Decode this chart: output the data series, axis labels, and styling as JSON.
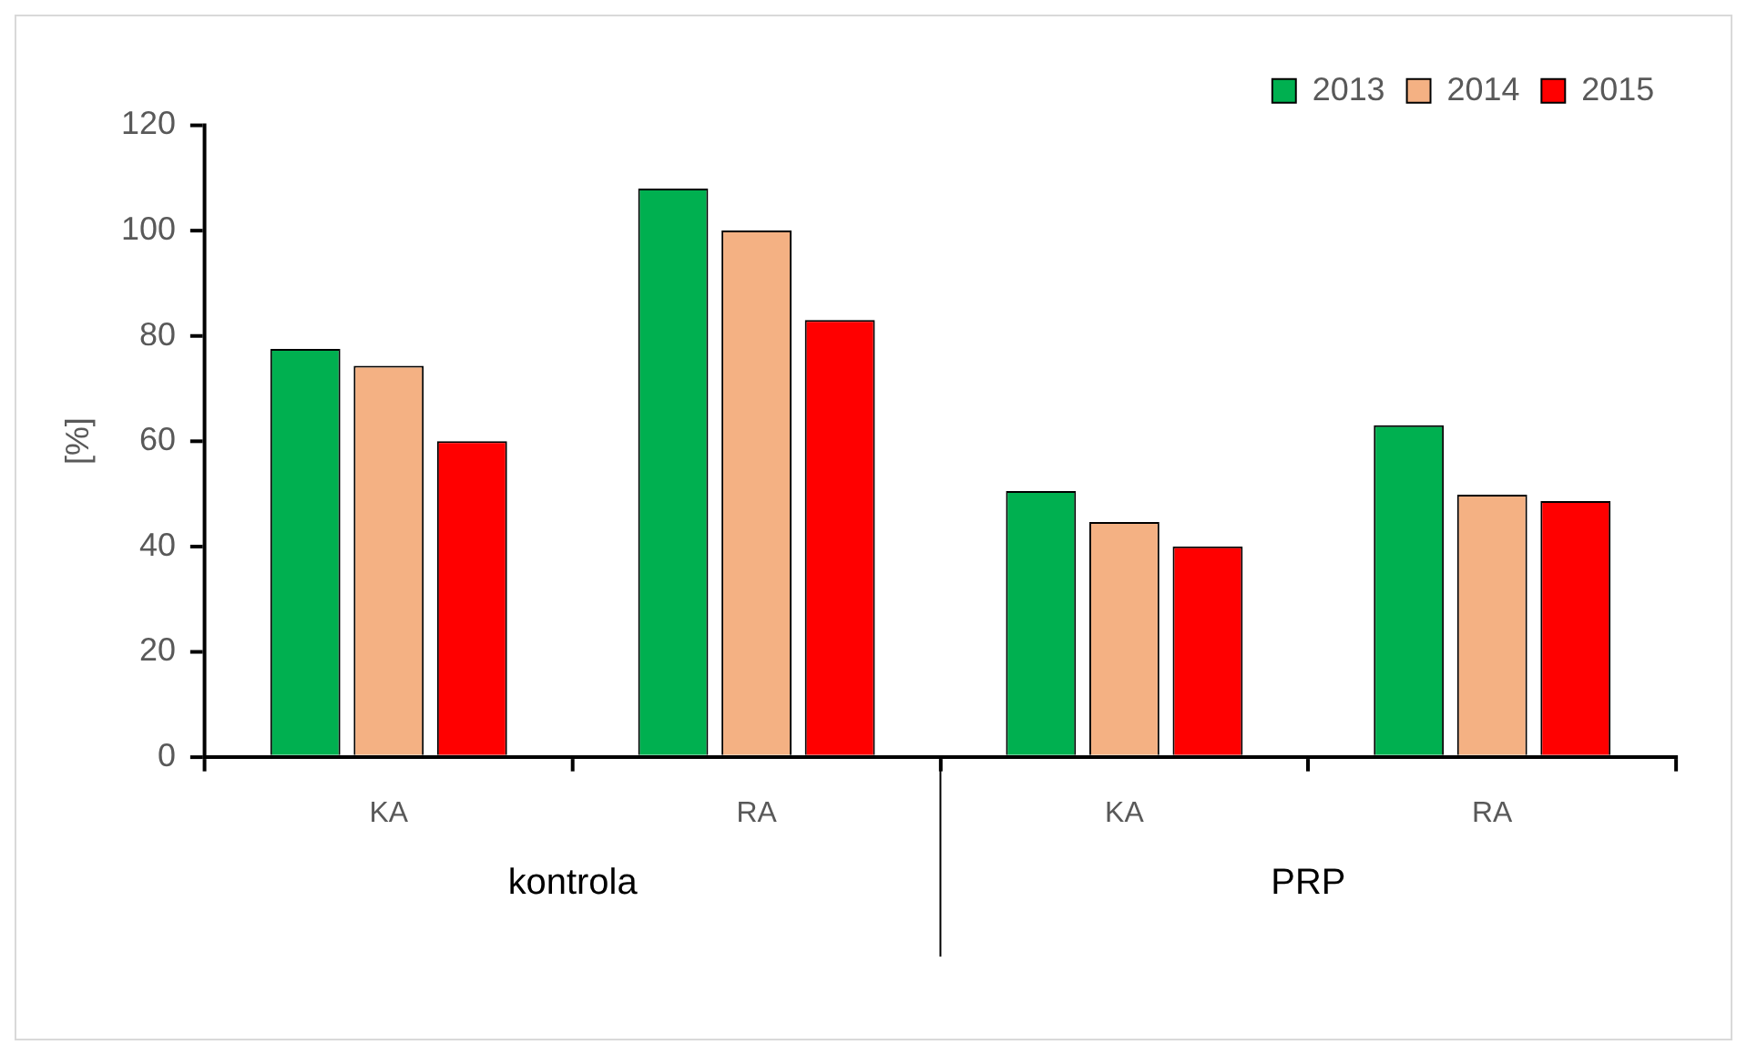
{
  "chart_data": {
    "type": "bar",
    "ylabel": "[%]",
    "categories": [
      "KA",
      "RA",
      "KA",
      "RA"
    ],
    "series": [
      {
        "name": "2013",
        "color": "#00b050",
        "values": [
          77.5,
          108,
          50.5,
          63
        ]
      },
      {
        "name": "2014",
        "color": "#f4b183",
        "values": [
          74.3,
          100,
          44.6,
          49.8
        ]
      },
      {
        "name": "2015",
        "color": "#ff0000",
        "values": [
          60,
          83,
          40,
          48.6
        ]
      }
    ],
    "ylim": [
      0,
      120
    ],
    "yticks": [
      0,
      20,
      40,
      60,
      80,
      100,
      120
    ],
    "grid": false,
    "legend": "top right",
    "annotations": [
      "kontrola",
      "PRP"
    ]
  }
}
